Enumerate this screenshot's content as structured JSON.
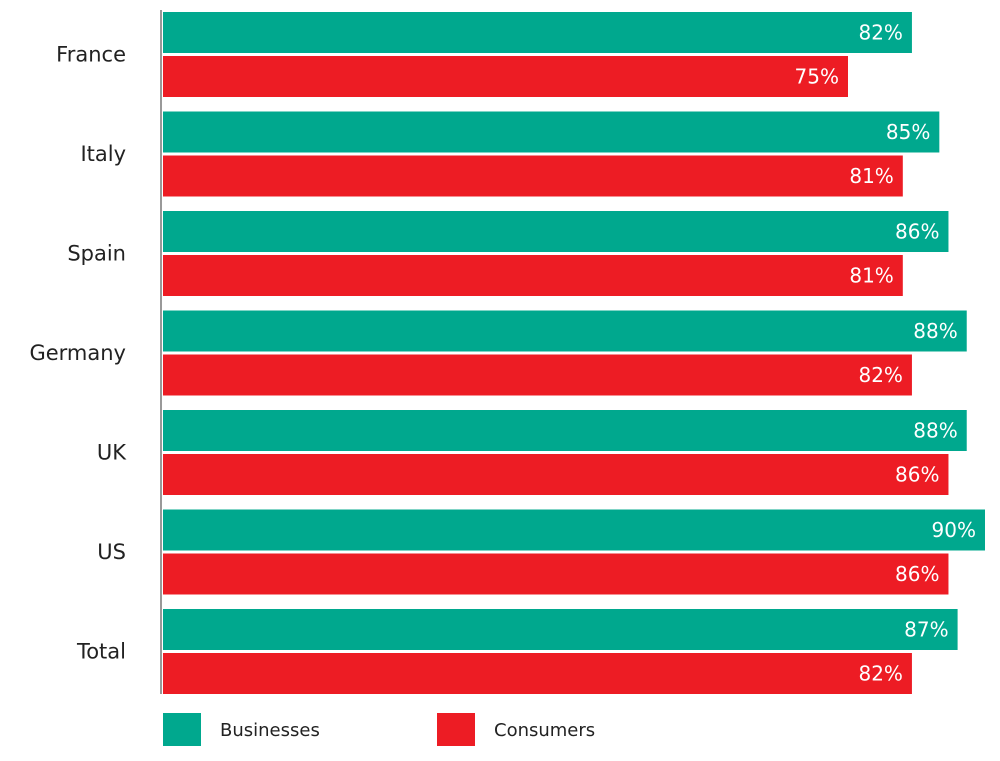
{
  "chart_data": {
    "type": "bar",
    "orientation": "horizontal",
    "categories": [
      "France",
      "Italy",
      "Spain",
      "Germany",
      "UK",
      "US",
      "Total"
    ],
    "series": [
      {
        "name": "Businesses",
        "color": "#00a88e",
        "values": [
          82,
          85,
          86,
          88,
          88,
          90,
          87
        ],
        "labels": [
          "82%",
          "85%",
          "86%",
          "88%",
          "88%",
          "90%",
          "87%"
        ]
      },
      {
        "name": "Consumers",
        "color": "#ed1c24",
        "values": [
          75,
          81,
          81,
          82,
          86,
          86,
          82
        ],
        "labels": [
          "75%",
          "81%",
          "81%",
          "82%",
          "86%",
          "86%",
          "82%"
        ]
      }
    ],
    "xlim": [
      0,
      90
    ],
    "grid": false,
    "legend_position": "bottom-left",
    "title": "",
    "xlabel": "",
    "ylabel": ""
  }
}
